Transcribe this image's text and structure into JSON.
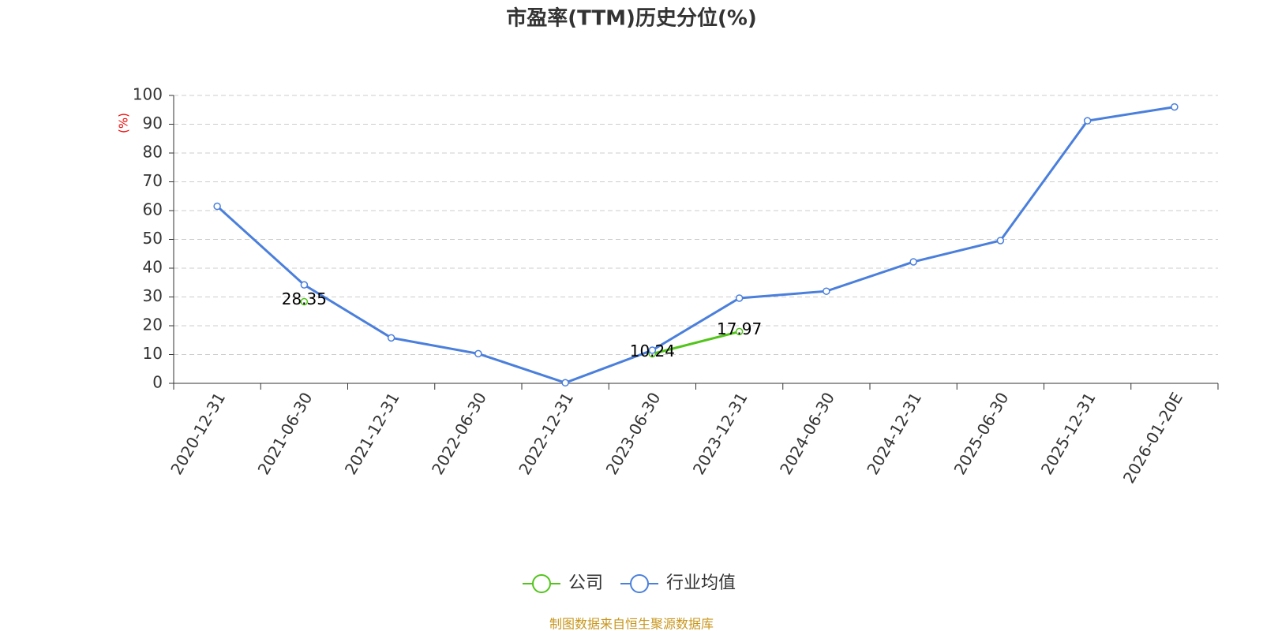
{
  "chart_data": {
    "type": "line",
    "title": "市盈率(TTM)历史分位(%)",
    "y_label": "(%)",
    "categories": [
      "2020-12-31",
      "2021-06-30",
      "2021-12-31",
      "2022-06-30",
      "2022-12-31",
      "2023-06-30",
      "2023-12-31",
      "2024-06-30",
      "2024-12-31",
      "2025-06-30",
      "2025-12-31",
      "2026-01-20E"
    ],
    "series": [
      {
        "name": "公司",
        "color": "#52c41a",
        "values": [
          null,
          28.35,
          null,
          null,
          null,
          10.24,
          17.97,
          null,
          null,
          null,
          null,
          null
        ]
      },
      {
        "name": "行业均值",
        "color": "#4a7fdc",
        "values": [
          61.5,
          34.2,
          15.8,
          10.3,
          0.2,
          11.5,
          29.6,
          32.0,
          42.2,
          49.6,
          91.2,
          96.0
        ]
      }
    ],
    "ylim": [
      0,
      100
    ],
    "yticks": [
      0,
      10,
      20,
      30,
      40,
      50,
      60,
      70,
      80,
      90,
      100
    ],
    "grid": true,
    "source": "制图数据来自恒生聚源数据库"
  }
}
